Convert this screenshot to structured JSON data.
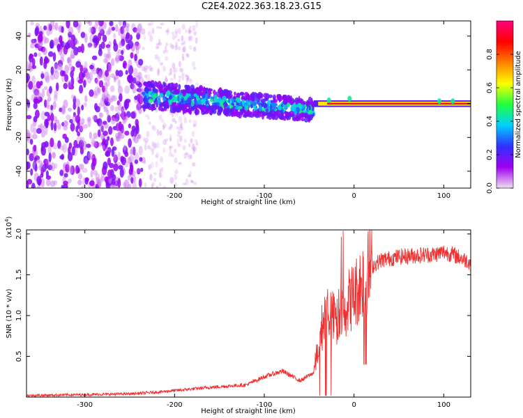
{
  "title": "C2E4.2022.363.18.23.G15",
  "chart_data": [
    {
      "type": "heatmap",
      "xlabel": "Height of straight line (km)",
      "ylabel": "Frequency (Hz)",
      "xlim": [
        -365,
        130
      ],
      "ylim": [
        -50,
        49
      ],
      "x_ticks": [
        -300,
        -200,
        -100,
        0,
        100
      ],
      "y_ticks": [
        -40,
        -20,
        0,
        20,
        40
      ],
      "colorbar": {
        "label": "Normalized spectral amplitude",
        "range": [
          0.0,
          1.0
        ],
        "ticks": [
          0.0,
          0.2,
          0.4,
          0.6,
          0.8
        ],
        "colors": [
          "#f0e0f0",
          "#a000f0",
          "#3030ff",
          "#00d0ff",
          "#20ff40",
          "#ffff00",
          "#ff8000",
          "#ff0000",
          "#ff0080"
        ]
      },
      "regions": [
        {
          "x_range": [
            -365,
            -235
          ],
          "freq_range": [
            -50,
            49
          ],
          "amplitude": 0.1,
          "pattern": "dense noise"
        },
        {
          "x_range": [
            -235,
            -180
          ],
          "freq_range": [
            -50,
            49
          ],
          "amplitude": 0.03,
          "pattern": "sparse noise"
        },
        {
          "x_range": [
            -235,
            -45
          ],
          "freq_range": [
            -10,
            15
          ],
          "amplitude": 0.3,
          "pattern": "band with strips"
        },
        {
          "x_range": [
            -45,
            130
          ],
          "freq_range": [
            -1.5,
            1.5
          ],
          "amplitude": 0.95,
          "pattern": "narrow carrier line"
        }
      ]
    },
    {
      "type": "line",
      "xlabel": "Height of straight line (km)",
      "ylabel": "SNR (10 * v/v)",
      "multiplier": "(x10",
      "multiplier_exp": "4",
      "multiplier_close": ")",
      "xlim": [
        -365,
        130
      ],
      "ylim": [
        0,
        2.05
      ],
      "x_ticks": [
        -300,
        -200,
        -100,
        0,
        100
      ],
      "y_ticks": [
        0.5,
        1.0,
        1.5,
        2.0
      ],
      "y_tick_labels": [
        "0.5",
        "1.0",
        "1.5",
        "2.0"
      ],
      "color": "#f03030",
      "x": [
        -365,
        -300,
        -250,
        -220,
        -200,
        -160,
        -120,
        -100,
        -80,
        -60,
        -45,
        -40,
        -35,
        -30,
        -25,
        -20,
        -15,
        -10,
        -5,
        0,
        10,
        20,
        30,
        50,
        70,
        90,
        100,
        110,
        120,
        130
      ],
      "y": [
        0.02,
        0.03,
        0.04,
        0.06,
        0.08,
        0.12,
        0.15,
        0.25,
        0.32,
        0.2,
        0.3,
        0.6,
        0.9,
        1.1,
        1.0,
        0.9,
        1.05,
        1.1,
        1.2,
        1.25,
        1.45,
        1.6,
        1.68,
        1.72,
        1.74,
        1.75,
        1.78,
        1.75,
        1.7,
        1.65
      ]
    }
  ]
}
